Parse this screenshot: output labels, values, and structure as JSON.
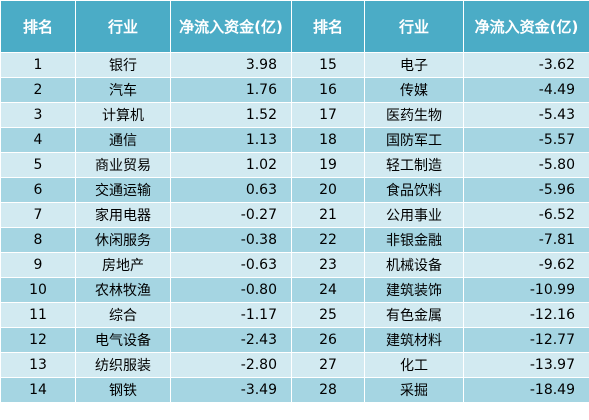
{
  "header": [
    "排名",
    "行业",
    "净流入资金(亿)",
    "排名",
    "行业",
    "净流入资金(亿)"
  ],
  "rows": [
    [
      {
        "rank": "1",
        "industry": "银行",
        "value": "3.98"
      },
      {
        "rank": "15",
        "industry": "电子",
        "value": "-3.62"
      }
    ],
    [
      {
        "rank": "2",
        "industry": "汽车",
        "value": "1.76"
      },
      {
        "rank": "16",
        "industry": "传媒",
        "value": "-4.49"
      }
    ],
    [
      {
        "rank": "3",
        "industry": "计算机",
        "value": "1.52"
      },
      {
        "rank": "17",
        "industry": "医药生物",
        "value": "-5.43"
      }
    ],
    [
      {
        "rank": "4",
        "industry": "通信",
        "value": "1.13"
      },
      {
        "rank": "18",
        "industry": "国防军工",
        "value": "-5.57"
      }
    ],
    [
      {
        "rank": "5",
        "industry": "商业贸易",
        "value": "1.02"
      },
      {
        "rank": "19",
        "industry": "轻工制造",
        "value": "-5.80"
      }
    ],
    [
      {
        "rank": "6",
        "industry": "交通运输",
        "value": "0.63"
      },
      {
        "rank": "20",
        "industry": "食品饮料",
        "value": "-5.96"
      }
    ],
    [
      {
        "rank": "7",
        "industry": "家用电器",
        "value": "-0.27"
      },
      {
        "rank": "21",
        "industry": "公用事业",
        "value": "-6.52"
      }
    ],
    [
      {
        "rank": "8",
        "industry": "休闲服务",
        "value": "-0.38"
      },
      {
        "rank": "22",
        "industry": "非银金融",
        "value": "-7.81"
      }
    ],
    [
      {
        "rank": "9",
        "industry": "房地产",
        "value": "-0.63"
      },
      {
        "rank": "23",
        "industry": "机械设备",
        "value": "-9.62"
      }
    ],
    [
      {
        "rank": "10",
        "industry": "农林牧渔",
        "value": "-0.80"
      },
      {
        "rank": "24",
        "industry": "建筑装饰",
        "value": "-10.99"
      }
    ],
    [
      {
        "rank": "11",
        "industry": "综合",
        "value": "-1.17"
      },
      {
        "rank": "25",
        "industry": "有色金属",
        "value": "-12.16"
      }
    ],
    [
      {
        "rank": "12",
        "industry": "电气设备",
        "value": "-2.43"
      },
      {
        "rank": "26",
        "industry": "建筑材料",
        "value": "-12.77"
      }
    ],
    [
      {
        "rank": "13",
        "industry": "纺织服装",
        "value": "-2.80"
      },
      {
        "rank": "27",
        "industry": "化工",
        "value": "-13.97"
      }
    ],
    [
      {
        "rank": "14",
        "industry": "钢铁",
        "value": "-3.49"
      },
      {
        "rank": "28",
        "industry": "采掘",
        "value": "-18.49"
      }
    ]
  ],
  "colors": {
    "header_bg": "#4bacc6",
    "row_light": "#d2eaf1",
    "row_dark": "#a5d5e2"
  }
}
